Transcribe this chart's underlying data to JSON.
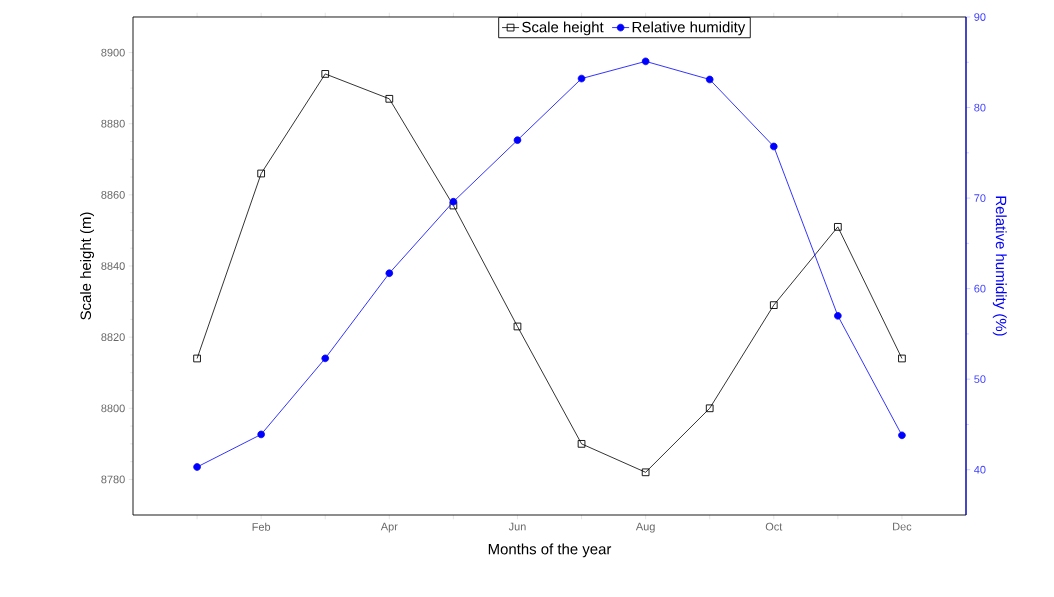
{
  "chart_data": {
    "type": "line",
    "xlabel": "Months of the year",
    "ylabel": "Scale height (m)",
    "y2label": "Relative humidity (%)",
    "categories": [
      null,
      "Feb",
      null,
      "Apr",
      null,
      "Jun",
      null,
      "Aug",
      null,
      "Oct",
      null,
      "Dec"
    ],
    "ylim": [
      8770,
      8910
    ],
    "yticks": [
      8780,
      8800,
      8820,
      8840,
      8860,
      8880,
      8900
    ],
    "y2lim": [
      35,
      90
    ],
    "y2ticks": [
      40,
      50,
      60,
      70,
      80,
      90
    ],
    "legend": "top",
    "line_style": "solid",
    "series": [
      {
        "name": "Scale height",
        "color": "#000000",
        "marker": "square",
        "values": [
          8814,
          8866,
          8894,
          8887,
          8857,
          8823,
          8790,
          8782,
          8800,
          8829,
          8851,
          8814
        ]
      },
      {
        "name": "Relative humidity",
        "color": "#0000ff",
        "marker": "circle",
        "axis": "y2",
        "values": [
          40.3,
          43.9,
          52.3,
          61.7,
          69.6,
          76.4,
          83.2,
          85.1,
          83.1,
          75.7,
          57,
          43.8
        ]
      }
    ]
  }
}
